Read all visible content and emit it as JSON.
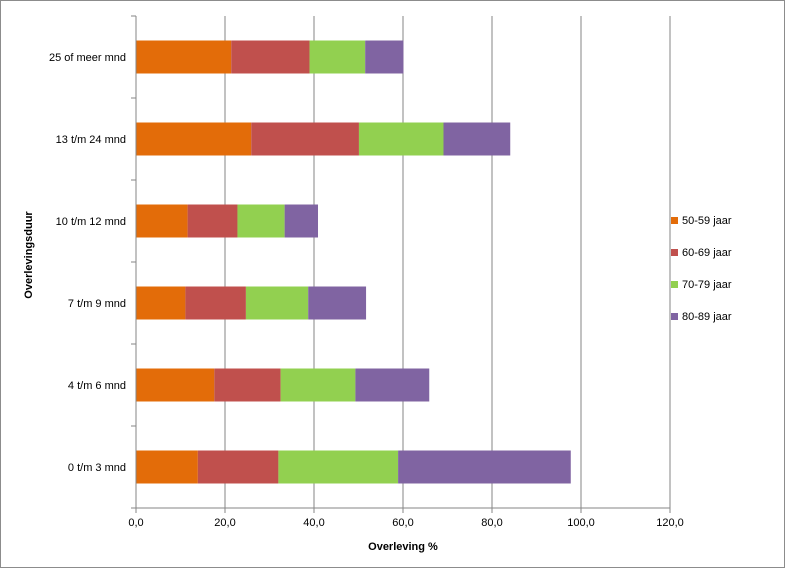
{
  "chart_data": {
    "type": "bar",
    "orientation": "horizontal",
    "stacked": true,
    "title": "",
    "xlabel": "Overleving %",
    "ylabel": "Overlevingsduur",
    "categories": [
      "0 t/m 3 mnd",
      "4 t/m 6 mnd",
      "7 t/m 9 mnd",
      "10 t/m 12 mnd",
      "13 t/m 24 mnd",
      "25 of meer mnd"
    ],
    "series": [
      {
        "name": "50-59 jaar",
        "color": "#e36c09",
        "values": [
          13.9,
          17.6,
          11.1,
          11.6,
          25.9,
          21.4
        ]
      },
      {
        "name": "60-69 jaar",
        "color": "#c0504d",
        "values": [
          18.1,
          14.9,
          13.6,
          11.2,
          24.2,
          17.6
        ]
      },
      {
        "name": "70-79 jaar",
        "color": "#92d050",
        "values": [
          26.9,
          16.8,
          14.0,
          10.6,
          19.0,
          12.5
        ]
      },
      {
        "name": "80-89 jaar",
        "color": "#8064a2",
        "values": [
          38.8,
          16.6,
          13.0,
          7.5,
          15.0,
          8.6
        ]
      }
    ],
    "xlim": [
      0,
      120
    ],
    "xticks": [
      0,
      20,
      40,
      60,
      80,
      100,
      120
    ],
    "xtick_labels": [
      "0,0",
      "20,0",
      "40,0",
      "60,0",
      "80,0",
      "100,0",
      "120,0"
    ],
    "grid": "vertical",
    "legend_position": "right"
  }
}
